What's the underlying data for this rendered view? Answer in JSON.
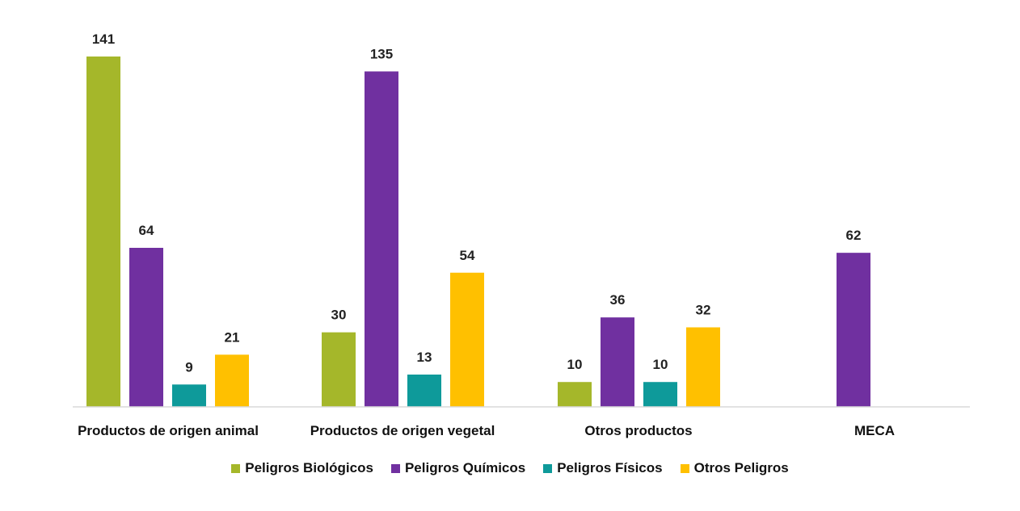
{
  "chart_data": {
    "type": "bar",
    "title": "",
    "xlabel": "",
    "ylabel": "",
    "ylim": [
      0,
      150
    ],
    "grid": false,
    "legend_position": "bottom",
    "categories": [
      "Productos de origen animal",
      "Productos de origen vegetal",
      "Otros productos",
      "MECA"
    ],
    "series": [
      {
        "name": "Peligros Biológicos",
        "color": "#A5B72A",
        "values": [
          141,
          30,
          10,
          null
        ]
      },
      {
        "name": "Peligros Químicos",
        "color": "#7030A0",
        "values": [
          64,
          135,
          36,
          62
        ]
      },
      {
        "name": "Peligros Físicos",
        "color": "#0E9A9A",
        "values": [
          9,
          13,
          10,
          null
        ]
      },
      {
        "name": "Otros Peligros",
        "color": "#FFC000",
        "values": [
          21,
          54,
          32,
          null
        ]
      }
    ]
  }
}
